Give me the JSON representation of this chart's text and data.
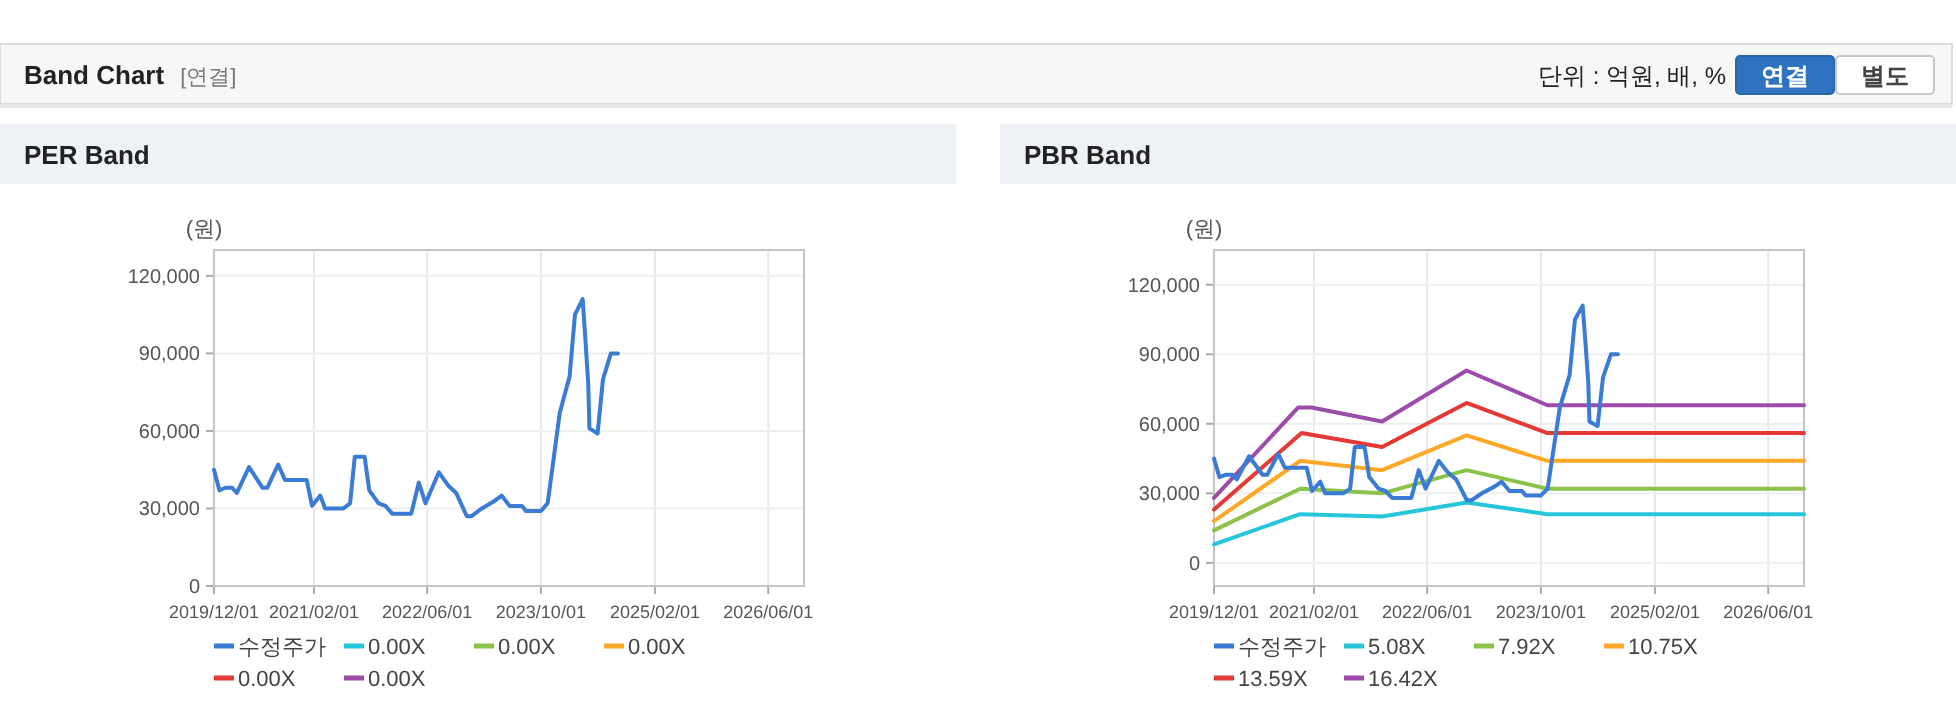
{
  "chart_data": [
    {
      "type": "other",
      "title": "Band Chart",
      "subtitle": "[연결]",
      "annotations": [
        "단위 : 억원, 배, %",
        "연결",
        "별도"
      ]
    },
    {
      "type": "line",
      "title": "PER Band",
      "ylabel": "(원)",
      "xlim": [
        "2019-12-01",
        "2026-11-01"
      ],
      "ylim": [
        0,
        130000
      ],
      "xticks": [
        {
          "value": "2019-12-01",
          "label": "2019/12/01"
        },
        {
          "value": "2021-02-01",
          "label": "2021/02/01"
        },
        {
          "value": "2022-06-01",
          "label": "2022/06/01"
        },
        {
          "value": "2023-10-01",
          "label": "2023/10/01"
        },
        {
          "value": "2025-02-01",
          "label": "2025/02/01"
        },
        {
          "value": "2026-06-01",
          "label": "2026/06/01"
        }
      ],
      "yticks": [
        0,
        {
          "value": 30000,
          "label": "30,000"
        },
        {
          "value": 60000,
          "label": "60,000"
        },
        {
          "value": 90000,
          "label": "90,000"
        },
        {
          "value": 120000,
          "label": "120,000"
        }
      ],
      "grid": true,
      "legend": "bottom",
      "series": [
        {
          "name": "수정주가",
          "color": "#3a7bd5",
          "x": [
            "2019-12-01",
            "2019-12-24",
            "2020-01-19",
            "2020-02-17",
            "2020-03-08",
            "2020-04-29",
            "2020-06-26",
            "2020-07-16",
            "2020-09-01",
            "2020-09-30",
            "2021-01-01",
            "2021-01-24",
            "2021-02-28",
            "2021-03-21",
            "2021-06-07",
            "2021-07-06",
            "2021-07-26",
            "2021-09-06",
            "2021-09-26",
            "2021-11-05",
            "2021-12-04",
            "2022-01-02",
            "2022-03-25",
            "2022-04-26",
            "2022-05-25",
            "2022-07-21",
            "2022-08-29",
            "2022-10-03",
            "2022-11-18",
            "2022-12-08",
            "2023-01-21",
            "2023-03-18",
            "2023-04-16",
            "2023-05-20",
            "2023-07-12",
            "2023-07-29",
            "2023-10-01",
            "2023-10-30",
            "2023-12-21",
            "2024-02-01",
            "2024-02-24",
            "2024-03-28",
            "2024-04-09",
            "2024-04-21",
            "2024-04-26",
            "2024-05-31",
            "2024-06-23",
            "2024-07-27",
            "2024-08-26"
          ],
          "values": [
            45000,
            37000,
            38000,
            38000,
            36000,
            46000,
            38000,
            38000,
            47000,
            41000,
            41000,
            31000,
            35000,
            30000,
            30000,
            32000,
            50000,
            50000,
            37000,
            32000,
            31000,
            28000,
            28000,
            40000,
            32000,
            44000,
            39000,
            36000,
            27000,
            27000,
            30000,
            33000,
            35000,
            31000,
            31000,
            29000,
            29000,
            32000,
            67000,
            81000,
            105000,
            111000,
            95000,
            78000,
            61000,
            59000,
            80000,
            90000,
            90000
          ]
        },
        {
          "name": "0.00X",
          "color": "#26c6da"
        },
        {
          "name": "0.00X",
          "color": "#8bc34a"
        },
        {
          "name": "0.00X",
          "color": "#ffa726"
        },
        {
          "name": "0.00X",
          "color": "#e53935"
        },
        {
          "name": "0.00X",
          "color": "#9c4dab"
        }
      ]
    },
    {
      "type": "line",
      "title": "PBR Band",
      "ylabel": "(원)",
      "xlim": [
        "2019-12-01",
        "2026-11-01"
      ],
      "ylim": [
        -10000,
        135000
      ],
      "xticks": [
        {
          "value": "2019-12-01",
          "label": "2019/12/01"
        },
        {
          "value": "2021-02-01",
          "label": "2021/02/01"
        },
        {
          "value": "2022-06-01",
          "label": "2022/06/01"
        },
        {
          "value": "2023-10-01",
          "label": "2023/10/01"
        },
        {
          "value": "2025-02-01",
          "label": "2025/02/01"
        },
        {
          "value": "2026-06-01",
          "label": "2026/06/01"
        }
      ],
      "yticks": [
        0,
        {
          "value": 30000,
          "label": "30,000"
        },
        {
          "value": 60000,
          "label": "60,000"
        },
        {
          "value": 90000,
          "label": "90,000"
        },
        {
          "value": 120000,
          "label": "120,000"
        }
      ],
      "grid": true,
      "legend": "bottom",
      "series": [
        {
          "name": "수정주가",
          "color": "#3a7bd5",
          "x": [
            "2019-12-01",
            "2019-12-24",
            "2020-01-19",
            "2020-02-17",
            "2020-03-08",
            "2020-04-29",
            "2020-06-26",
            "2020-07-16",
            "2020-09-01",
            "2020-09-30",
            "2021-01-01",
            "2021-01-24",
            "2021-02-28",
            "2021-03-21",
            "2021-06-07",
            "2021-07-06",
            "2021-07-26",
            "2021-09-06",
            "2021-09-26",
            "2021-11-05",
            "2021-12-04",
            "2022-01-02",
            "2022-03-25",
            "2022-04-26",
            "2022-05-25",
            "2022-07-21",
            "2022-08-29",
            "2022-10-03",
            "2022-11-18",
            "2022-12-08",
            "2023-01-21",
            "2023-03-18",
            "2023-04-16",
            "2023-05-20",
            "2023-07-12",
            "2023-07-29",
            "2023-10-01",
            "2023-10-30",
            "2023-12-21",
            "2024-02-01",
            "2024-02-24",
            "2024-03-28",
            "2024-04-09",
            "2024-04-21",
            "2024-04-26",
            "2024-05-31",
            "2024-06-23",
            "2024-07-27",
            "2024-08-26"
          ],
          "values": [
            45000,
            37000,
            38000,
            38000,
            36000,
            46000,
            38000,
            38000,
            47000,
            41000,
            41000,
            31000,
            35000,
            30000,
            30000,
            32000,
            50000,
            50000,
            37000,
            32000,
            31000,
            28000,
            28000,
            40000,
            32000,
            44000,
            39000,
            36000,
            27000,
            27000,
            30000,
            33000,
            35000,
            31000,
            31000,
            29000,
            29000,
            32000,
            67000,
            81000,
            105000,
            111000,
            95000,
            78000,
            61000,
            59000,
            80000,
            90000,
            90000
          ]
        },
        {
          "name": "5.08X",
          "color": "#26c6da",
          "x": [
            "2019-12-01",
            "2020-12-04",
            "2021-11-20",
            "2022-11-17",
            "2023-10-29",
            "2026-11-01"
          ],
          "values": [
            8000,
            21000,
            20000,
            26000,
            21000,
            21000
          ]
        },
        {
          "name": "7.92X",
          "color": "#8bc34a",
          "x": [
            "2019-12-01",
            "2020-12-04",
            "2021-11-20",
            "2022-11-17",
            "2023-10-29",
            "2026-11-01"
          ],
          "values": [
            14000,
            32000,
            30000,
            40000,
            32000,
            32000
          ]
        },
        {
          "name": "10.75X",
          "color": "#ffa726",
          "x": [
            "2019-12-01",
            "2020-12-04",
            "2021-11-20",
            "2022-11-17",
            "2023-10-29",
            "2026-11-01"
          ],
          "values": [
            18000,
            44000,
            40000,
            55000,
            44000,
            44000
          ]
        },
        {
          "name": "13.59X",
          "color": "#e53935",
          "x": [
            "2019-12-01",
            "2020-12-10",
            "2021-11-20",
            "2022-11-17",
            "2023-10-29",
            "2026-11-01"
          ],
          "values": [
            23000,
            56000,
            50000,
            69000,
            56000,
            56000
          ]
        },
        {
          "name": "16.42X",
          "color": "#9c4dab",
          "x": [
            "2019-12-01",
            "2020-11-25",
            "2021-01-22",
            "2021-11-20",
            "2022-11-17",
            "2023-10-29",
            "2026-11-01"
          ],
          "values": [
            28000,
            67000,
            67000,
            61000,
            83000,
            68000,
            68000
          ]
        }
      ]
    }
  ]
}
